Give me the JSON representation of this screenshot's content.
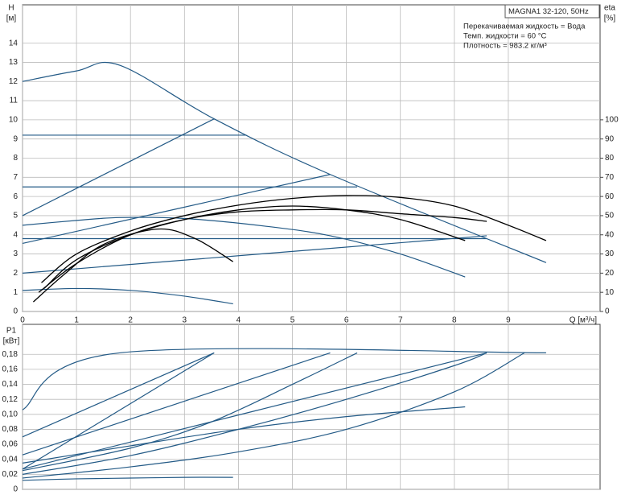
{
  "chart_data": [
    {
      "type": "line",
      "y_label": "H",
      "y_unit": "[м]",
      "y2_label": "eta",
      "y2_unit": "[%]",
      "x_label": "Q [м³/ч]",
      "annotations": [
        "MAGNA1 32-120, 50Hz",
        "Перекачиваемая жидкость = Вода",
        "Темп. жидкости = 60 °C",
        "Плотность = 983.2 кг/м³"
      ],
      "xlim": [
        0,
        10.7
      ],
      "xticks": [
        0,
        1,
        2,
        3,
        4,
        5,
        6,
        7,
        8,
        9
      ],
      "ylim": [
        0,
        16
      ],
      "yticks": [
        0,
        1,
        2,
        3,
        4,
        5,
        6,
        7,
        8,
        9,
        10,
        11,
        12,
        13,
        14
      ],
      "y2lim": [
        0,
        160
      ],
      "y2ticks": [
        0,
        10,
        20,
        30,
        40,
        50,
        60,
        70,
        80,
        90,
        100
      ],
      "grid": true,
      "series": [
        {
          "color": "#235a86",
          "x": [
            0,
            1,
            1.8,
            3.55,
            5.7,
            9.7
          ],
          "values": [
            12,
            12.55,
            12.85,
            10.05,
            7.15,
            2.55
          ]
        },
        {
          "color": "#235a86",
          "x": [
            0,
            4.15
          ],
          "values": [
            9.2,
            9.2
          ]
        },
        {
          "color": "#235a86",
          "x": [
            0,
            6.2
          ],
          "values": [
            6.5,
            6.5
          ]
        },
        {
          "color": "#235a86",
          "x": [
            0,
            8.6
          ],
          "values": [
            3.8,
            3.8
          ]
        },
        {
          "color": "#235a86",
          "x": [
            0,
            3.55
          ],
          "values": [
            5,
            10.05
          ]
        },
        {
          "color": "#235a86",
          "x": [
            0,
            5.7
          ],
          "values": [
            3.55,
            7.15
          ]
        },
        {
          "color": "#235a86",
          "x": [
            0,
            8.6
          ],
          "values": [
            2,
            3.95
          ]
        },
        {
          "color": "#235a86",
          "x": [
            0,
            1,
            1.8,
            3,
            4.5,
            5.7,
            7,
            8.2
          ],
          "values": [
            4.5,
            4.75,
            4.9,
            4.85,
            4.45,
            3.95,
            3,
            1.8
          ]
        },
        {
          "color": "#235a86",
          "x": [
            0,
            1,
            2,
            3,
            3.9
          ],
          "values": [
            1.1,
            1.2,
            1.1,
            0.8,
            0.4
          ]
        },
        {
          "color": "#000000",
          "axis": "y2",
          "x": [
            0.35,
            1,
            2,
            3,
            4,
            5,
            6,
            7,
            8,
            9,
            9.7
          ],
          "values": [
            15,
            30,
            42,
            50,
            55.5,
            59,
            60.5,
            59.5,
            55,
            45,
            37
          ]
        },
        {
          "color": "#000000",
          "axis": "y2",
          "x": [
            0.4,
            1,
            2,
            3,
            4,
            5,
            6,
            7,
            8.2
          ],
          "values": [
            12,
            27,
            40,
            48,
            53,
            55,
            53,
            48,
            37
          ]
        },
        {
          "color": "#000000",
          "axis": "y2",
          "x": [
            0.2,
            0.8,
            1.5,
            2.5,
            3.2,
            3.9
          ],
          "values": [
            5,
            20,
            35,
            43,
            38,
            26
          ]
        },
        {
          "color": "#000000",
          "axis": "y2",
          "x": [
            0.3,
            1,
            2,
            3,
            4,
            5,
            6,
            7,
            8,
            8.6
          ],
          "values": [
            10,
            25,
            40,
            48,
            52,
            53,
            53,
            51,
            49,
            47
          ]
        }
      ]
    },
    {
      "type": "line",
      "y_label": "P1",
      "y_unit": "[кВт]",
      "xlim": [
        0,
        10.7
      ],
      "ylim": [
        0,
        0.22
      ],
      "yticks": [
        0,
        {
          "value": 0.02,
          "label": "0,02"
        },
        {
          "value": 0.04,
          "label": "0,04"
        },
        {
          "value": 0.06,
          "label": "0,06"
        },
        {
          "value": 0.08,
          "label": "0,08"
        },
        {
          "value": 0.1,
          "label": "0,10"
        },
        {
          "value": 0.12,
          "label": "0,12"
        },
        {
          "value": 0.14,
          "label": "0,14"
        },
        {
          "value": 0.16,
          "label": "0,16"
        },
        {
          "value": 0.18,
          "label": "0,18"
        }
      ],
      "grid": true,
      "series": [
        {
          "color": "#235a86",
          "x": [
            0,
            1.8,
            9.7
          ],
          "values": [
            0.106,
            0.182,
            0.182
          ]
        },
        {
          "color": "#235a86",
          "x": [
            0,
            3.55
          ],
          "values": [
            0.07,
            0.182
          ]
        },
        {
          "color": "#235a86",
          "x": [
            0,
            5.7
          ],
          "values": [
            0.046,
            0.182
          ]
        },
        {
          "color": "#235a86",
          "x": [
            0,
            8.6
          ],
          "values": [
            0.027,
            0.182
          ]
        },
        {
          "color": "#235a86",
          "x": [
            0,
            3.55
          ],
          "values": [
            0.027,
            0.182
          ]
        },
        {
          "color": "#235a86",
          "x": [
            0,
            2,
            3.5,
            5,
            6.2
          ],
          "values": [
            0.025,
            0.055,
            0.09,
            0.14,
            0.182
          ]
        },
        {
          "color": "#235a86",
          "x": [
            0,
            2,
            4,
            6,
            8,
            8.6
          ],
          "values": [
            0.02,
            0.045,
            0.08,
            0.12,
            0.165,
            0.182
          ]
        },
        {
          "color": "#235a86",
          "x": [
            0,
            2,
            4,
            6,
            8,
            9.3
          ],
          "values": [
            0.015,
            0.03,
            0.05,
            0.08,
            0.13,
            0.182
          ]
        },
        {
          "color": "#235a86",
          "x": [
            0,
            2,
            4,
            6,
            8.2
          ],
          "values": [
            0.035,
            0.058,
            0.08,
            0.097,
            0.11
          ]
        },
        {
          "color": "#235a86",
          "x": [
            0,
            1,
            2,
            3,
            3.9
          ],
          "values": [
            0.012,
            0.014,
            0.015,
            0.016,
            0.016
          ]
        }
      ]
    }
  ]
}
